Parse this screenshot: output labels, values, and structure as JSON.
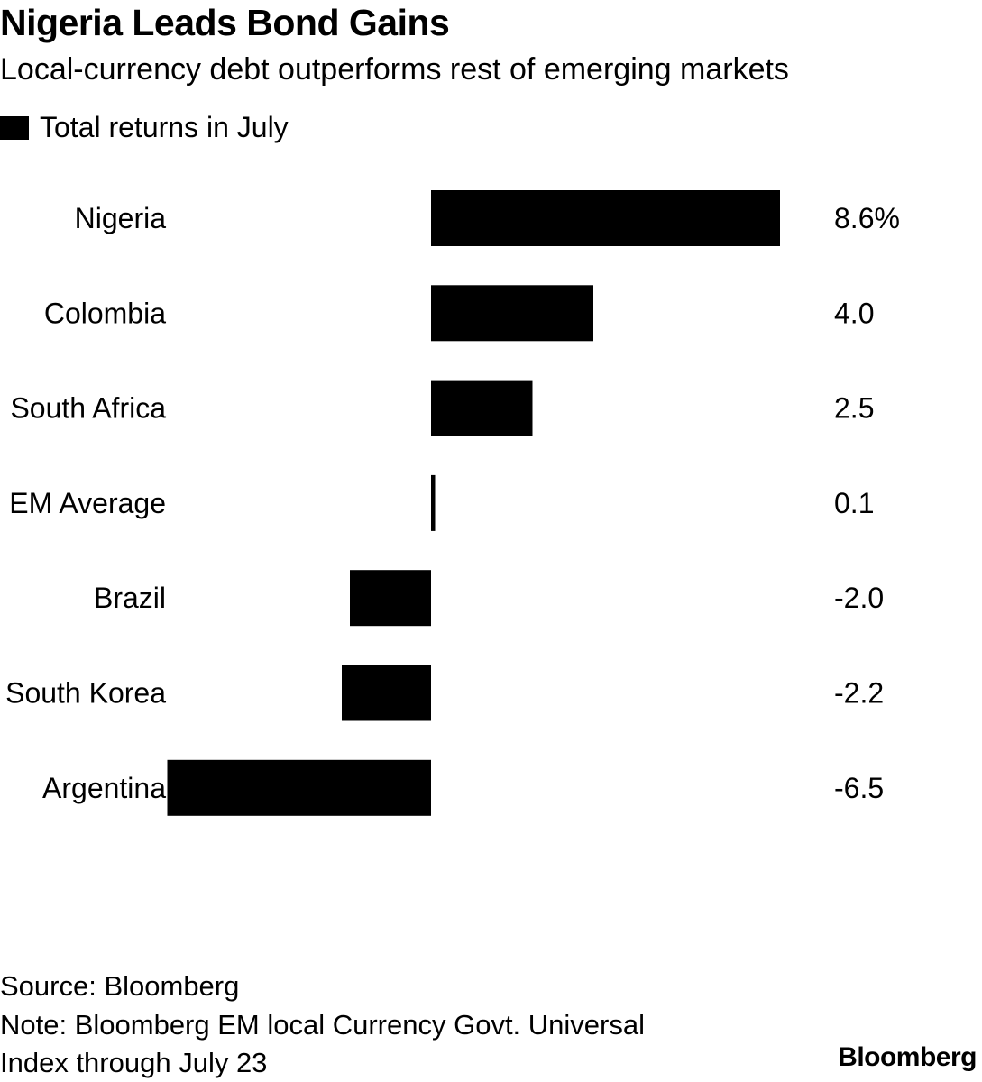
{
  "title": "Nigeria Leads Bond Gains",
  "subtitle": "Local-currency debt outperforms rest of emerging markets",
  "footer": {
    "source": "Source: Bloomberg",
    "note_line1": "Note: Bloomberg EM local Currency Govt. Universal",
    "note_line2": "Index through July 23",
    "brand": "Bloomberg"
  },
  "chart_data": {
    "type": "bar",
    "orientation": "horizontal",
    "title": "Nigeria Leads Bond Gains",
    "subtitle": "Local-currency debt outperforms rest of emerging markets",
    "legend": {
      "position": "top-left",
      "entries": [
        "Total returns in July"
      ]
    },
    "categories": [
      "Nigeria",
      "Colombia",
      "South Africa",
      "EM Average",
      "Brazil",
      "South Korea",
      "Argentina"
    ],
    "series": [
      {
        "name": "Total returns in July",
        "color": "#000000",
        "values": [
          8.6,
          4.0,
          2.5,
          0.1,
          -2.0,
          -2.2,
          -6.5
        ],
        "value_labels": [
          "8.6%",
          "4.0",
          "2.5",
          "0.1",
          "-2.0",
          "-2.2",
          "-6.5"
        ]
      }
    ],
    "xlim": [
      -6.5,
      8.6
    ],
    "grid": false
  }
}
